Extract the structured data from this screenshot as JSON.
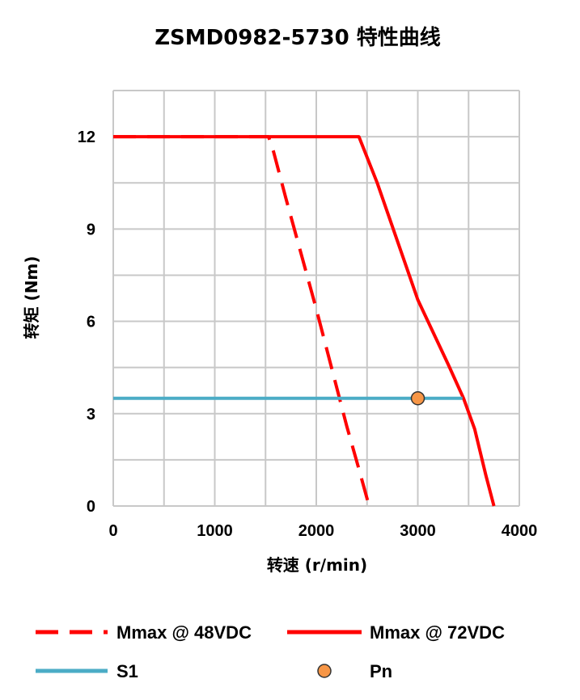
{
  "chart_data": {
    "type": "line",
    "title": "ZSMD0982-5730 特性曲线",
    "xlabel": "转速 (r/min)",
    "ylabel": "转矩 (Nm)",
    "xlim": [
      0,
      4000
    ],
    "ylim": [
      0,
      13.5
    ],
    "x_major_ticks": [
      0,
      1000,
      2000,
      3000,
      4000
    ],
    "x_grid": [
      0,
      500,
      1000,
      1500,
      2000,
      2500,
      3000,
      3500,
      4000
    ],
    "y_major_ticks": [
      0,
      3,
      6,
      9,
      12
    ],
    "y_grid": [
      0,
      1.5,
      3,
      4.5,
      6,
      7.5,
      9,
      10.5,
      12,
      13.5
    ],
    "grid": true,
    "legend_position": "bottom",
    "series": [
      {
        "name": "Mmax @ 48VDC",
        "style": "dashed",
        "color": "#ff0000",
        "points": [
          [
            0,
            12
          ],
          [
            1530,
            12
          ],
          [
            1580,
            11.5
          ],
          [
            1700,
            10
          ],
          [
            2000,
            6.4
          ],
          [
            2300,
            2.6
          ],
          [
            2420,
            1.2
          ],
          [
            2520,
            0
          ]
        ]
      },
      {
        "name": "Mmax @ 72VDC",
        "style": "solid",
        "color": "#ff0000",
        "points": [
          [
            0,
            12
          ],
          [
            2420,
            12
          ],
          [
            2600,
            10.5
          ],
          [
            3000,
            6.7
          ],
          [
            3300,
            4.6
          ],
          [
            3450,
            3.5
          ],
          [
            3560,
            2.5
          ],
          [
            3670,
            1.0
          ],
          [
            3750,
            0
          ]
        ]
      },
      {
        "name": "S1",
        "style": "solid",
        "color": "#4bacc6",
        "points": [
          [
            0,
            3.5
          ],
          [
            3440,
            3.5
          ]
        ]
      }
    ],
    "markers": [
      {
        "name": "Pn",
        "x": 3000,
        "y": 3.5,
        "color": "#f79646"
      }
    ]
  }
}
